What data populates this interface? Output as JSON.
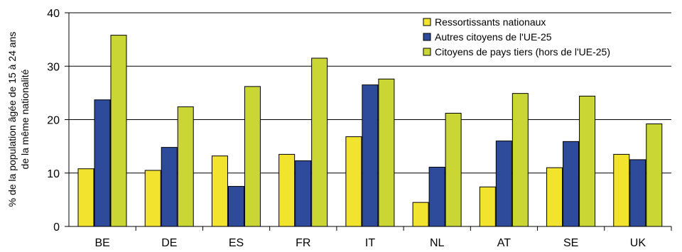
{
  "chart_data": {
    "type": "bar",
    "ylabel_lines": [
      "% de la population âgée de 15 à 24 ans",
      "de la même nationalité"
    ],
    "categories": [
      "BE",
      "DE",
      "ES",
      "FR",
      "IT",
      "NL",
      "AT",
      "SE",
      "UK"
    ],
    "series": [
      {
        "name": "Ressortissants nationaux",
        "color": "#f2e32e",
        "values": [
          10.8,
          10.5,
          13.2,
          13.5,
          16.8,
          4.5,
          7.4,
          11.0,
          13.5
        ]
      },
      {
        "name": "Autres citoyens de l'UE-25",
        "color": "#2e4a9b",
        "values": [
          23.7,
          14.8,
          7.5,
          12.3,
          26.5,
          11.1,
          16.0,
          15.9,
          12.5
        ]
      },
      {
        "name": "Citoyens de pays tiers (hors de l'UE-25)",
        "color": "#c9d633",
        "values": [
          35.8,
          22.4,
          26.2,
          31.5,
          27.6,
          21.2,
          24.9,
          24.4,
          19.2
        ]
      }
    ],
    "ylim": [
      0,
      40
    ],
    "yticks": [
      0,
      10,
      20,
      30,
      40
    ],
    "grid": true,
    "legend_position": "top-right"
  }
}
